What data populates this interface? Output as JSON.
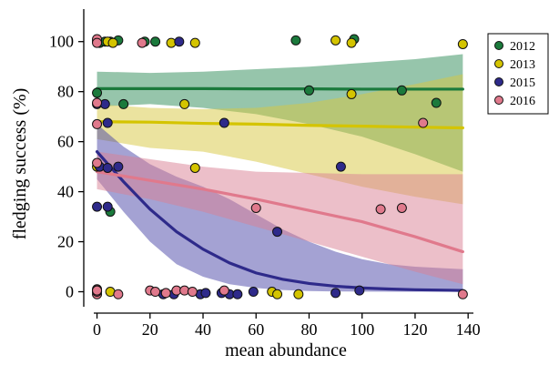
{
  "chart_data": {
    "type": "scatter",
    "xlabel": "mean abundance",
    "ylabel": "fledging success (%)",
    "xlim": [
      -5,
      142
    ],
    "ylim": [
      -6,
      113
    ],
    "xticks": [
      0,
      20,
      40,
      60,
      80,
      100,
      120,
      140
    ],
    "yticks": [
      0,
      20,
      40,
      60,
      80,
      100
    ],
    "grid": false,
    "legend_position": "top-right",
    "series": [
      {
        "name": "2012",
        "color": "#1b7a3c",
        "band_color": "#2e8b57",
        "trend": [
          [
            0,
            81.2
          ],
          [
            20,
            81.2
          ],
          [
            40,
            81.2
          ],
          [
            60,
            81.1
          ],
          [
            80,
            81.1
          ],
          [
            100,
            81.0
          ],
          [
            120,
            81.0
          ],
          [
            138,
            81.0
          ]
        ],
        "band_upper": [
          [
            0,
            88
          ],
          [
            20,
            87.5
          ],
          [
            40,
            88
          ],
          [
            60,
            89
          ],
          [
            80,
            90
          ],
          [
            100,
            91.5
          ],
          [
            120,
            93
          ],
          [
            138,
            95
          ]
        ],
        "band_lower": [
          [
            0,
            74
          ],
          [
            20,
            75
          ],
          [
            40,
            73.5
          ],
          [
            60,
            71
          ],
          [
            80,
            67
          ],
          [
            100,
            62
          ],
          [
            120,
            55
          ],
          [
            138,
            48
          ]
        ],
        "points": [
          [
            0,
            79.5
          ],
          [
            0,
            100
          ],
          [
            1,
            99.5
          ],
          [
            3,
            100
          ],
          [
            5,
            100
          ],
          [
            8,
            100.5
          ],
          [
            10,
            75
          ],
          [
            18,
            100
          ],
          [
            22,
            100
          ],
          [
            75,
            100.5
          ],
          [
            80,
            80.5
          ],
          [
            97,
            101
          ],
          [
            115,
            80.5
          ],
          [
            128,
            75.5
          ],
          [
            5,
            32
          ]
        ]
      },
      {
        "name": "2013",
        "color": "#d4c400",
        "band_color": "#d8c840",
        "trend": [
          [
            0,
            68
          ],
          [
            20,
            67.8
          ],
          [
            40,
            67.3
          ],
          [
            60,
            67
          ],
          [
            80,
            66.5
          ],
          [
            100,
            66.2
          ],
          [
            120,
            65.8
          ],
          [
            138,
            65.5
          ]
        ],
        "band_upper": [
          [
            0,
            75
          ],
          [
            20,
            73.5
          ],
          [
            40,
            73
          ],
          [
            60,
            73.5
          ],
          [
            80,
            75.5
          ],
          [
            100,
            79
          ],
          [
            120,
            83
          ],
          [
            138,
            87
          ]
        ],
        "band_lower": [
          [
            0,
            61
          ],
          [
            20,
            57.5
          ],
          [
            40,
            56
          ],
          [
            60,
            52
          ],
          [
            80,
            47
          ],
          [
            100,
            42
          ],
          [
            120,
            38
          ],
          [
            138,
            35
          ]
        ],
        "points": [
          [
            0,
            100
          ],
          [
            4,
            100
          ],
          [
            6,
            99.5
          ],
          [
            28,
            99.5
          ],
          [
            37,
            99.5
          ],
          [
            33,
            75
          ],
          [
            37,
            49.5
          ],
          [
            90,
            100.5
          ],
          [
            96,
            99.5
          ],
          [
            96,
            79
          ],
          [
            138,
            99
          ],
          [
            5,
            0
          ],
          [
            66,
            0
          ],
          [
            68,
            -1
          ],
          [
            76,
            -1
          ],
          [
            0,
            50
          ]
        ]
      },
      {
        "name": "2015",
        "color": "#2e2a8a",
        "band_color": "#4a46a8",
        "trend": [
          [
            0,
            56
          ],
          [
            10,
            44
          ],
          [
            20,
            33
          ],
          [
            30,
            24
          ],
          [
            40,
            17
          ],
          [
            50,
            11.5
          ],
          [
            60,
            7.5
          ],
          [
            70,
            5
          ],
          [
            80,
            3.3
          ],
          [
            90,
            2.2
          ],
          [
            100,
            1.5
          ],
          [
            110,
            1.1
          ],
          [
            120,
            0.8
          ],
          [
            138,
            0.5
          ]
        ],
        "band_upper": [
          [
            0,
            67
          ],
          [
            10,
            58
          ],
          [
            20,
            51
          ],
          [
            30,
            46
          ],
          [
            40,
            42
          ],
          [
            50,
            37
          ],
          [
            60,
            31
          ],
          [
            70,
            25
          ],
          [
            80,
            20
          ],
          [
            90,
            16
          ],
          [
            100,
            13
          ],
          [
            110,
            11
          ],
          [
            120,
            10
          ],
          [
            138,
            9
          ]
        ],
        "band_lower": [
          [
            0,
            45
          ],
          [
            10,
            32
          ],
          [
            20,
            20
          ],
          [
            30,
            11
          ],
          [
            40,
            6
          ],
          [
            50,
            3
          ],
          [
            60,
            1.5
          ],
          [
            70,
            0.7
          ],
          [
            80,
            0.3
          ],
          [
            90,
            0.1
          ],
          [
            100,
            0.05
          ],
          [
            110,
            0.02
          ],
          [
            120,
            0.01
          ],
          [
            138,
            0
          ]
        ],
        "points": [
          [
            0,
            34
          ],
          [
            4,
            34
          ],
          [
            0,
            75
          ],
          [
            3,
            75
          ],
          [
            4,
            67.5
          ],
          [
            1,
            50
          ],
          [
            4,
            49.5
          ],
          [
            8,
            50
          ],
          [
            31,
            100
          ],
          [
            48,
            67.5
          ],
          [
            68,
            24
          ],
          [
            92,
            50
          ],
          [
            0,
            0
          ],
          [
            25,
            -1
          ],
          [
            29,
            -1
          ],
          [
            39,
            -1
          ],
          [
            41,
            -0.5
          ],
          [
            47,
            -0.5
          ],
          [
            50,
            -1
          ],
          [
            53,
            -1
          ],
          [
            59,
            0
          ],
          [
            90,
            -0.5
          ],
          [
            99,
            0.5
          ]
        ]
      },
      {
        "name": "2016",
        "color": "#e0798c",
        "band_color": "#d98093",
        "trend": [
          [
            0,
            48
          ],
          [
            20,
            44.5
          ],
          [
            40,
            41
          ],
          [
            60,
            37
          ],
          [
            80,
            32.5
          ],
          [
            100,
            28
          ],
          [
            120,
            22
          ],
          [
            138,
            16
          ]
        ],
        "band_upper": [
          [
            0,
            56
          ],
          [
            20,
            53
          ],
          [
            40,
            50
          ],
          [
            60,
            48
          ],
          [
            80,
            47.5
          ],
          [
            100,
            47
          ],
          [
            120,
            47
          ],
          [
            138,
            47
          ]
        ],
        "band_lower": [
          [
            0,
            41
          ],
          [
            20,
            37
          ],
          [
            40,
            32
          ],
          [
            60,
            26
          ],
          [
            80,
            20
          ],
          [
            100,
            14
          ],
          [
            120,
            8
          ],
          [
            138,
            3
          ]
        ],
        "points": [
          [
            0,
            101
          ],
          [
            0,
            99.5
          ],
          [
            0,
            75.5
          ],
          [
            0,
            67
          ],
          [
            0,
            51.5
          ],
          [
            17,
            99.5
          ],
          [
            0,
            1
          ],
          [
            0,
            -1
          ],
          [
            0,
            0
          ],
          [
            0,
            0.5
          ],
          [
            0,
            0.5
          ],
          [
            0,
            0.5
          ],
          [
            20,
            0.5
          ],
          [
            22,
            0
          ],
          [
            26,
            -0.5
          ],
          [
            30,
            0.5
          ],
          [
            33,
            0.5
          ],
          [
            36,
            0
          ],
          [
            48,
            0.5
          ],
          [
            60,
            33.5
          ],
          [
            107,
            33
          ],
          [
            115,
            33.5
          ],
          [
            123,
            67.5
          ],
          [
            138,
            -1
          ],
          [
            8,
            -1
          ]
        ]
      }
    ]
  }
}
